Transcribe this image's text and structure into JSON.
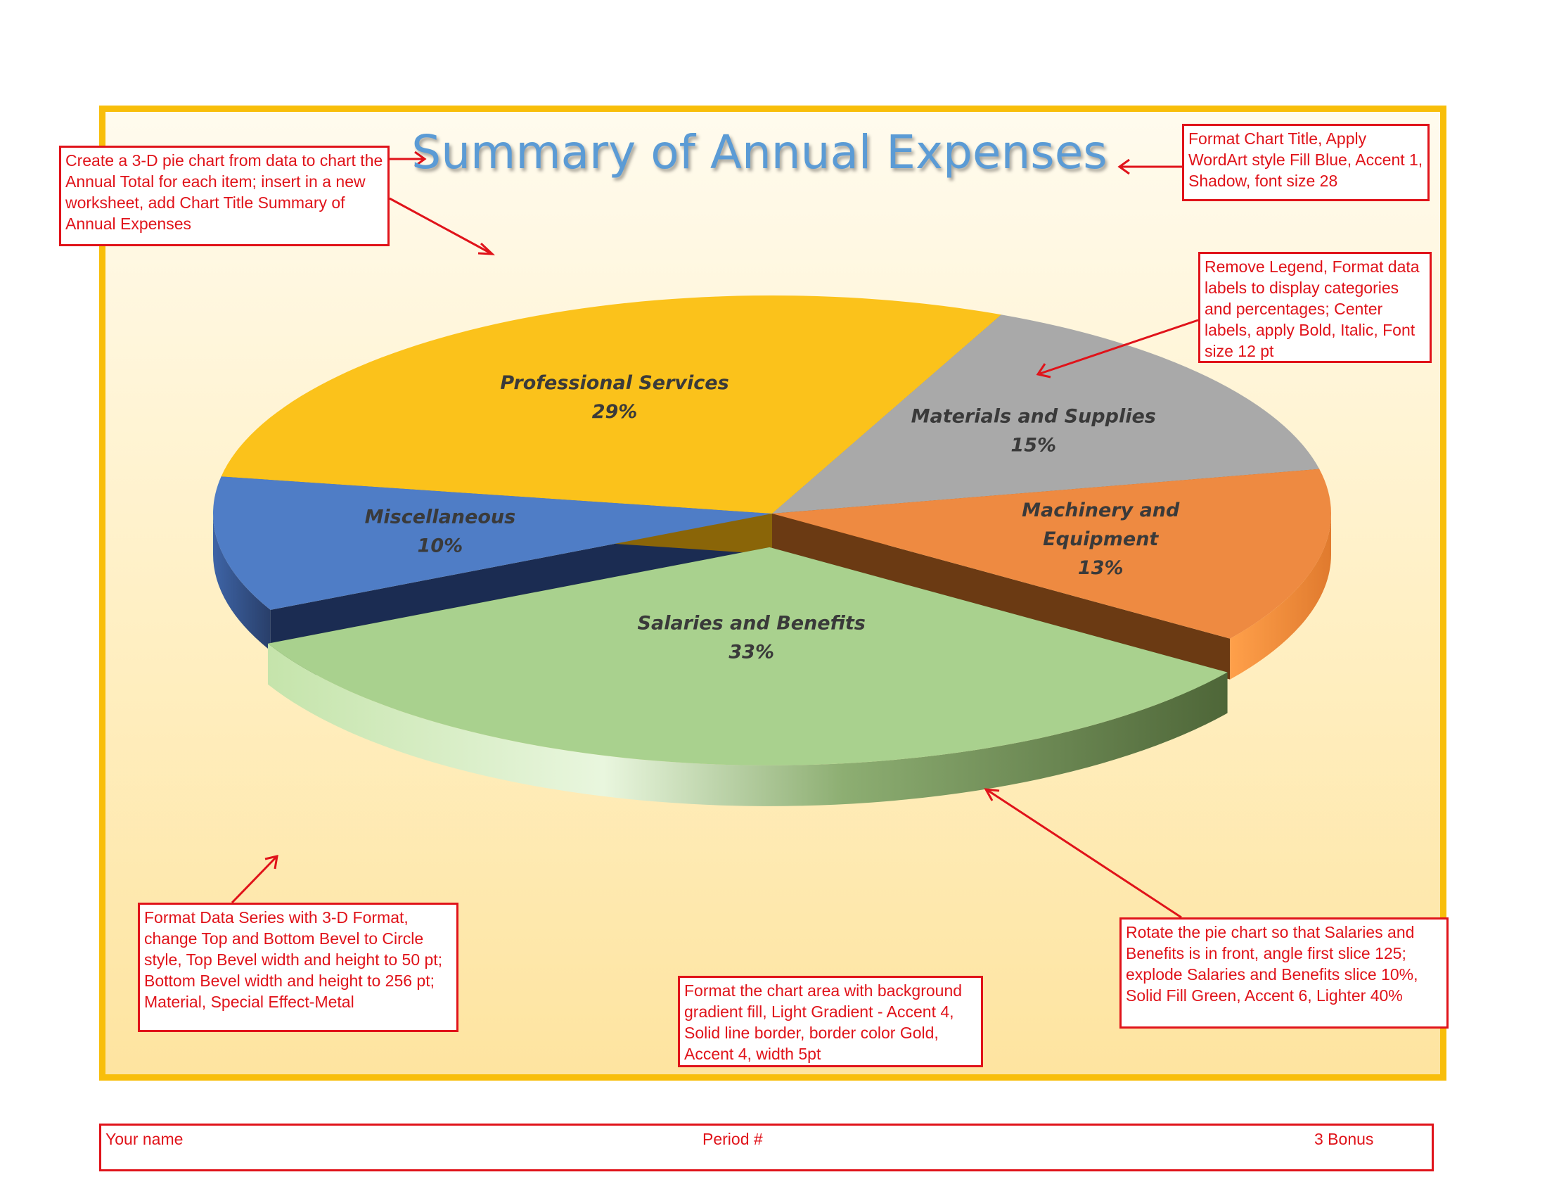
{
  "chart_data": {
    "type": "pie",
    "title": "Summary of Annual Expenses",
    "categories": [
      "Salaries and Benefits",
      "Miscellaneous",
      "Professional Services",
      "Materials and Supplies",
      "Machinery and Equipment"
    ],
    "values": [
      33,
      10,
      29,
      15,
      13
    ],
    "data_labels": [
      {
        "category": "Salaries and Benefits",
        "percent": "33%"
      },
      {
        "category": "Miscellaneous",
        "percent": "10%"
      },
      {
        "category": "Professional Services",
        "percent": "29%"
      },
      {
        "category": "Materials and Supplies",
        "percent": "15%"
      },
      {
        "category": "Machinery and Equipment",
        "percent": "13%"
      }
    ],
    "legend": "none",
    "style": "3-D pie, exploded Salaries and Benefits slice",
    "colors": {
      "Salaries and Benefits": "#A9D18E",
      "Miscellaneous": "#4F7DC6",
      "Professional Services": "#FBC21B",
      "Materials and Supplies": "#A9A9A9",
      "Machinery and Equipment": "#EE8A41"
    }
  },
  "annotations": {
    "create": "Create a 3-D pie chart from data to chart the Annual Total for each item; insert in a new worksheet, add Chart Title Summary of Annual Expenses",
    "title_format": "Format Chart Title, Apply WordArt style Fill Blue, Accent 1, Shadow, font size 28",
    "legend_format": "Remove Legend, Format data labels to display categories and percentages; Center labels, apply Bold, Italic, Font size 12 pt",
    "series_format": "Format Data Series with 3-D Format, change Top and Bottom Bevel to Circle style, Top Bevel width and height to 50 pt; Bottom Bevel width and height to 256 pt; Material, Special Effect-Metal",
    "area_format": "Format the chart area with background gradient fill, Light Gradient - Accent 4, Solid line border, border color Gold, Accent 4, width 5pt",
    "rotate_format": "Rotate the pie chart so that Salaries and Benefits is in front, angle first slice 125; explode Salaries and Benefits slice 10%, Solid Fill Green, Accent 6, Lighter 40%"
  },
  "footer": {
    "name": "Your name",
    "period": "Period #",
    "bonus": "3 Bonus"
  },
  "colors": {
    "annotation_red": "#E0131A",
    "chart_border_gold": "#F8BE0A",
    "title_blue": "#5B9BD5"
  }
}
